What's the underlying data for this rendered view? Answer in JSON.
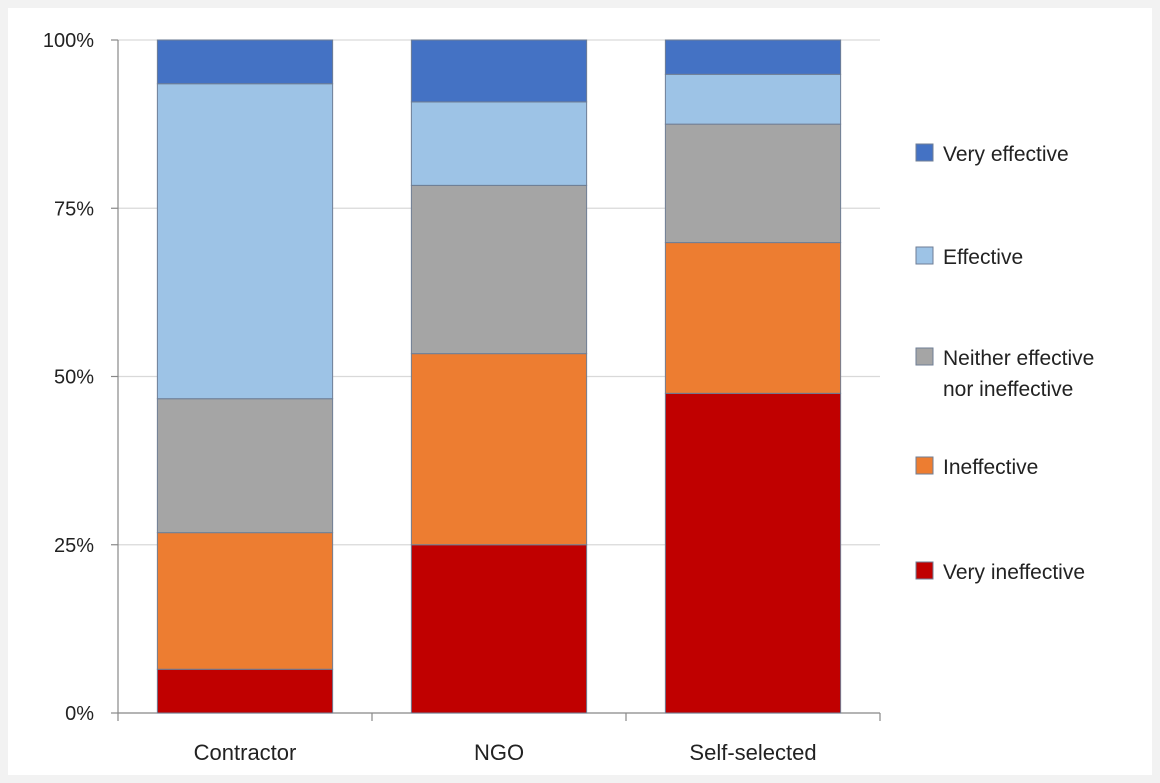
{
  "chart_data": {
    "type": "bar",
    "stacked": true,
    "orientation": "vertical",
    "categories": [
      "Contractor",
      "NGO",
      "Self-selected"
    ],
    "ylim": [
      0,
      100
    ],
    "yticks": [
      "0%",
      "25%",
      "50%",
      "75%",
      "100%"
    ],
    "grid": true,
    "legend_position": "right",
    "series": [
      {
        "name": "Very ineffective",
        "color": "#c00000",
        "values": [
          6.5,
          25,
          47.5
        ]
      },
      {
        "name": "Ineffective",
        "color": "#ed7d31",
        "values": [
          20.3,
          28.4,
          22.4
        ]
      },
      {
        "name": "Neither effective nor ineffective",
        "color": "#a5a5a5",
        "values": [
          19.9,
          25,
          17.6
        ]
      },
      {
        "name": "Effective",
        "color": "#9dc3e6",
        "values": [
          46.8,
          12.4,
          7.4
        ]
      },
      {
        "name": "Very effective",
        "color": "#4472c4",
        "values": [
          6.5,
          9.2,
          5.1
        ]
      }
    ],
    "legend": {
      "items": [
        {
          "lines": [
            "Very effective"
          ],
          "color": "#4472c4"
        },
        {
          "lines": [
            "Effective"
          ],
          "color": "#9dc3e6"
        },
        {
          "lines": [
            "Neither effective",
            "nor ineffective"
          ],
          "color": "#a5a5a5"
        },
        {
          "lines": [
            "Ineffective"
          ],
          "color": "#ed7d31"
        },
        {
          "lines": [
            "Very ineffective"
          ],
          "color": "#c00000"
        }
      ]
    }
  }
}
